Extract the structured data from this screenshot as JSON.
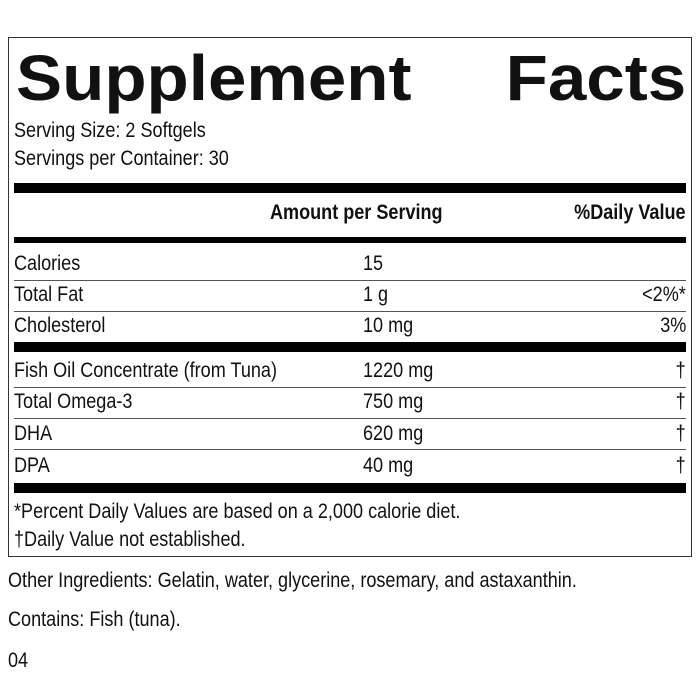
{
  "title": {
    "word1": "Supplement",
    "word2": "Facts"
  },
  "serving_size": "Serving Size: 2 Softgels",
  "servings_per_container": "Servings per Container: 30",
  "header": {
    "amount": "Amount per Serving",
    "dv": "%Daily Value"
  },
  "rows": [
    {
      "name": "Calories",
      "amount": "15",
      "dv": ""
    },
    {
      "name": "Total Fat",
      "amount": "1 g",
      "dv": "<2%*"
    },
    {
      "name": "Cholesterol",
      "amount": "10 mg",
      "dv": "3%"
    },
    {
      "name": "Fish Oil Concentrate (from Tuna)",
      "amount": "1220 mg",
      "dv": "†"
    },
    {
      "name": "Total Omega-3",
      "amount": "750 mg",
      "dv": "†"
    },
    {
      "name": "DHA",
      "amount": "620 mg",
      "dv": "†"
    },
    {
      "name": "DPA",
      "amount": "40 mg",
      "dv": "†"
    }
  ],
  "footnotes": [
    "*Percent Daily Values are based on a 2,000 calorie diet.",
    "†Daily Value not established."
  ],
  "other_ingredients": "Other Ingredients: Gelatin, water, glycerine, rosemary, and astaxanthin.",
  "contains": "Contains: Fish (tuna).",
  "code": "04"
}
